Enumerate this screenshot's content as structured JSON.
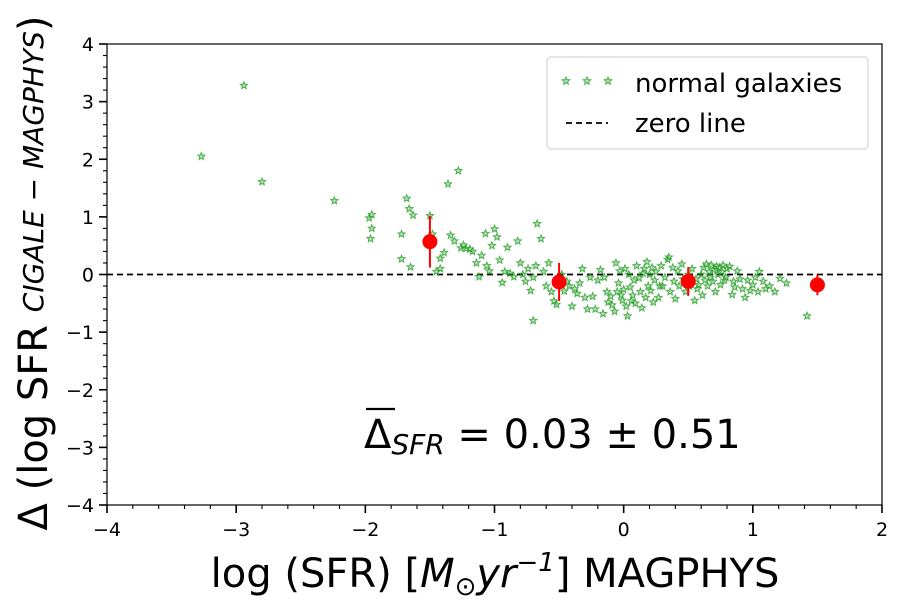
{
  "chart_data": {
    "type": "scatter",
    "xlabel": {
      "main": "log (SFR) [",
      "unit_m": "M",
      "unit_sub": "⊙",
      "unit_yr": "yr",
      "unit_exp": "−1",
      "tail": "] MAGPHYS"
    },
    "ylabel": {
      "main": "Δ (log SFR ",
      "sub": "CIGALE − MAGPHYS",
      "close": ")"
    },
    "xlim": [
      -4,
      2
    ],
    "ylim": [
      -4,
      4
    ],
    "x_ticks": [
      -4,
      -3,
      -2,
      -1,
      0,
      1,
      2
    ],
    "x_tick_labels": [
      "−4",
      "−3",
      "−2",
      "−1",
      "0",
      "1",
      "2"
    ],
    "y_ticks": [
      -4,
      -3,
      -2,
      -1,
      0,
      1,
      2,
      3,
      4
    ],
    "y_tick_labels": [
      "−4",
      "−3",
      "−2",
      "−1",
      "0",
      "1",
      "2",
      "3",
      "4"
    ],
    "legend": {
      "position": "top-right",
      "entries": [
        "normal galaxies",
        "zero line"
      ]
    },
    "annotation": {
      "symbol": "Δ",
      "sub": "SFR",
      "text": " = 0.03 ± 0.51"
    },
    "colors": {
      "galaxies": "#2ca02c",
      "binned": "#ff0000",
      "zero_line": "#000000"
    },
    "zero_line": 0,
    "binned": [
      {
        "x": -1.5,
        "y": 0.57,
        "err": 0.45
      },
      {
        "x": -0.5,
        "y": -0.13,
        "err": 0.33
      },
      {
        "x": 0.5,
        "y": -0.12,
        "err": 0.25
      },
      {
        "x": 1.5,
        "y": -0.18,
        "err": 0.18
      }
    ],
    "series": [
      {
        "name": "normal galaxies",
        "points": [
          [
            -3.27,
            2.05
          ],
          [
            -2.94,
            3.28
          ],
          [
            -2.8,
            1.61
          ],
          [
            -2.24,
            1.28
          ],
          [
            -1.95,
            1.04
          ],
          [
            -1.97,
            0.98
          ],
          [
            -1.95,
            0.8
          ],
          [
            -1.96,
            0.62
          ],
          [
            -1.72,
            0.7
          ],
          [
            -1.68,
            1.32
          ],
          [
            -1.66,
            1.14
          ],
          [
            -1.63,
            1.03
          ],
          [
            -1.72,
            0.27
          ],
          [
            -1.65,
            0.13
          ],
          [
            -1.48,
            0.7
          ],
          [
            -1.5,
            1.02
          ],
          [
            -1.42,
            0.28
          ],
          [
            -1.42,
            0.1
          ],
          [
            -1.45,
            0.05
          ],
          [
            -1.39,
            0.38
          ],
          [
            -1.36,
            1.57
          ],
          [
            -1.34,
            0.68
          ],
          [
            -1.31,
            0.58
          ],
          [
            -1.28,
            1.8
          ],
          [
            -1.26,
            0.46
          ],
          [
            -1.24,
            0.51
          ],
          [
            -1.22,
            0.45
          ],
          [
            -1.19,
            0.44
          ],
          [
            -1.17,
            0.4
          ],
          [
            -1.14,
            0.2
          ],
          [
            -1.12,
            -0.04
          ],
          [
            -1.1,
            0.33
          ],
          [
            -1.07,
            0.71
          ],
          [
            -1.06,
            0.15
          ],
          [
            -1.04,
            0.06
          ],
          [
            -1.02,
            0.5
          ],
          [
            -1.0,
            0.79
          ],
          [
            -0.98,
            0.65
          ],
          [
            -0.96,
            0.25
          ],
          [
            -0.94,
            -0.14
          ],
          [
            -0.92,
            0.05
          ],
          [
            -0.9,
            0.47
          ],
          [
            -0.88,
            0.02
          ],
          [
            -0.85,
            -0.04
          ],
          [
            -0.82,
            0.58
          ],
          [
            -0.8,
            0.2
          ],
          [
            -0.78,
            0.0
          ],
          [
            -0.76,
            -0.12
          ],
          [
            -0.74,
            0.1
          ],
          [
            -0.72,
            -0.28
          ],
          [
            -0.7,
            -0.05
          ],
          [
            -0.68,
            0.15
          ],
          [
            -0.7,
            -0.8
          ],
          [
            -0.67,
            0.88
          ],
          [
            -0.64,
            0.62
          ],
          [
            -0.62,
            0.05
          ],
          [
            -0.6,
            -0.2
          ],
          [
            -0.58,
            0.2
          ],
          [
            -0.56,
            -0.3
          ],
          [
            -0.54,
            -0.46
          ],
          [
            -0.52,
            -0.52
          ],
          [
            -0.5,
            -0.1
          ],
          [
            -0.48,
            0.0
          ],
          [
            -0.46,
            -0.29
          ],
          [
            -0.44,
            -0.12
          ],
          [
            -0.42,
            -0.2
          ],
          [
            -0.4,
            -0.55
          ],
          [
            -0.38,
            -0.25
          ],
          [
            -0.36,
            -0.33
          ],
          [
            -0.34,
            -0.15
          ],
          [
            -0.32,
            0.1
          ],
          [
            -0.3,
            -0.4
          ],
          [
            -0.28,
            -0.6
          ],
          [
            -0.26,
            -0.05
          ],
          [
            -0.24,
            -0.38
          ],
          [
            -0.22,
            -0.6
          ],
          [
            -0.2,
            -0.1
          ],
          [
            -0.18,
            0.08
          ],
          [
            -0.16,
            -0.68
          ],
          [
            -0.15,
            -0.05
          ],
          [
            -0.13,
            -0.3
          ],
          [
            -0.12,
            -0.48
          ],
          [
            -0.1,
            -0.38
          ],
          [
            -0.09,
            -0.53
          ],
          [
            -0.07,
            -0.64
          ],
          [
            -0.06,
            0.2
          ],
          [
            -0.05,
            -0.3
          ],
          [
            -0.04,
            -0.15
          ],
          [
            -0.03,
            0.06
          ],
          [
            -0.02,
            -0.36
          ],
          [
            -0.01,
            -0.45
          ],
          [
            0.0,
            -0.26
          ],
          [
            0.01,
            0.1
          ],
          [
            0.02,
            -0.55
          ],
          [
            0.03,
            -0.72
          ],
          [
            0.04,
            0.0
          ],
          [
            0.05,
            -0.22
          ],
          [
            0.06,
            -0.46
          ],
          [
            0.07,
            -0.36
          ],
          [
            0.08,
            -0.1
          ],
          [
            0.09,
            -0.5
          ],
          [
            0.1,
            0.15
          ],
          [
            0.12,
            -0.06
          ],
          [
            0.13,
            -0.3
          ],
          [
            0.14,
            -0.58
          ],
          [
            0.15,
            0.02
          ],
          [
            0.16,
            0.1
          ],
          [
            0.17,
            -0.4
          ],
          [
            0.18,
            0.22
          ],
          [
            0.19,
            -0.2
          ],
          [
            0.2,
            0.0
          ],
          [
            0.21,
            -0.28
          ],
          [
            0.22,
            0.12
          ],
          [
            0.23,
            -0.48
          ],
          [
            0.24,
            -0.1
          ],
          [
            0.25,
            0.05
          ],
          [
            0.27,
            -0.4
          ],
          [
            0.28,
            -0.2
          ],
          [
            0.29,
            0.15
          ],
          [
            0.3,
            -0.2
          ],
          [
            0.32,
            -0.05
          ],
          [
            0.34,
            0.26
          ],
          [
            0.35,
            0.3
          ],
          [
            0.36,
            -0.3
          ],
          [
            0.38,
            0.12
          ],
          [
            0.39,
            -0.12
          ],
          [
            0.4,
            -0.42
          ],
          [
            0.42,
            0.06
          ],
          [
            0.43,
            -0.2
          ],
          [
            0.45,
            0.18
          ],
          [
            0.46,
            -0.08
          ],
          [
            0.48,
            -0.3
          ],
          [
            0.5,
            0.0
          ],
          [
            0.51,
            -0.2
          ],
          [
            0.53,
            0.1
          ],
          [
            0.55,
            -0.45
          ],
          [
            0.56,
            -0.08
          ],
          [
            0.57,
            -0.25
          ],
          [
            0.58,
            -0.18
          ],
          [
            0.6,
            0.0
          ],
          [
            0.61,
            -0.36
          ],
          [
            0.62,
            0.12
          ],
          [
            0.63,
            -0.1
          ],
          [
            0.64,
            0.18
          ],
          [
            0.65,
            -0.2
          ],
          [
            0.66,
            0.05
          ],
          [
            0.67,
            -0.05
          ],
          [
            0.68,
            0.16
          ],
          [
            0.69,
            -0.12
          ],
          [
            0.7,
            0.08
          ],
          [
            0.71,
            -0.3
          ],
          [
            0.72,
            0.14
          ],
          [
            0.73,
            0.0
          ],
          [
            0.74,
            0.12
          ],
          [
            0.75,
            -0.18
          ],
          [
            0.76,
            0.05
          ],
          [
            0.77,
            0.16
          ],
          [
            0.78,
            -0.1
          ],
          [
            0.79,
            -0.05
          ],
          [
            0.8,
            0.1
          ],
          [
            0.82,
            0.14
          ],
          [
            0.84,
            -0.35
          ],
          [
            0.85,
            -0.12
          ],
          [
            0.86,
            -0.22
          ],
          [
            0.88,
            0.06
          ],
          [
            0.9,
            -0.08
          ],
          [
            0.92,
            -0.25
          ],
          [
            0.94,
            -0.4
          ],
          [
            0.96,
            -0.1
          ],
          [
            0.98,
            -0.28
          ],
          [
            1.0,
            -0.18
          ],
          [
            1.02,
            -0.05
          ],
          [
            1.04,
            -0.3
          ],
          [
            1.05,
            0.05
          ],
          [
            1.08,
            -0.12
          ],
          [
            1.1,
            -0.25
          ],
          [
            1.13,
            -0.2
          ],
          [
            1.17,
            -0.3
          ],
          [
            1.21,
            -0.07
          ],
          [
            1.26,
            -0.15
          ],
          [
            1.42,
            -0.72
          ]
        ]
      }
    ]
  }
}
